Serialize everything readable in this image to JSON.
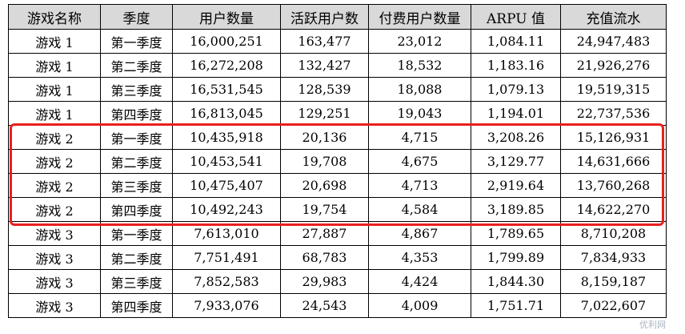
{
  "table": {
    "headers": [
      "游戏名称",
      "季度",
      "用户数量",
      "活跃用户数",
      "付费用户数量",
      "ARPU 值",
      "充值流水"
    ],
    "rows": [
      [
        "游戏 1",
        "第一季度",
        "16,000,251",
        "163,477",
        "23,012",
        "1,084.11",
        "24,947,483"
      ],
      [
        "游戏 1",
        "第二季度",
        "16,272,208",
        "132,427",
        "18,532",
        "1,183.16",
        "21,926,276"
      ],
      [
        "游戏 1",
        "第三季度",
        "16,531,545",
        "128,539",
        "18,088",
        "1,079.13",
        "19,519,315"
      ],
      [
        "游戏 1",
        "第四季度",
        "16,813,045",
        "129,251",
        "19,043",
        "1,194.01",
        "22,737,536"
      ],
      [
        "游戏 2",
        "第一季度",
        "10,435,918",
        "20,136",
        "4,715",
        "3,208.26",
        "15,126,931"
      ],
      [
        "游戏 2",
        "第二季度",
        "10,453,541",
        "19,708",
        "4,675",
        "3,129.77",
        "14,631,666"
      ],
      [
        "游戏 2",
        "第三季度",
        "10,475,407",
        "20,698",
        "4,713",
        "2,919.64",
        "13,760,268"
      ],
      [
        "游戏 2",
        "第四季度",
        "10,492,243",
        "19,754",
        "4,584",
        "3,189.85",
        "14,622,270"
      ],
      [
        "游戏 3",
        "第一季度",
        "7,613,010",
        "27,887",
        "4,867",
        "1,789.65",
        "8,710,208"
      ],
      [
        "游戏 3",
        "第二季度",
        "7,751,491",
        "68,783",
        "4,353",
        "1,799.89",
        "7,834,933"
      ],
      [
        "游戏 3",
        "第三季度",
        "7,852,583",
        "29,983",
        "4,424",
        "1,844.30",
        "8,159,187"
      ],
      [
        "游戏 3",
        "第四季度",
        "7,933,076",
        "24,543",
        "4,009",
        "1,751.71",
        "7,022,607"
      ]
    ]
  },
  "highlight_color": "#e8201e",
  "header_bg": "#d9d9d9",
  "watermark": "优利网"
}
